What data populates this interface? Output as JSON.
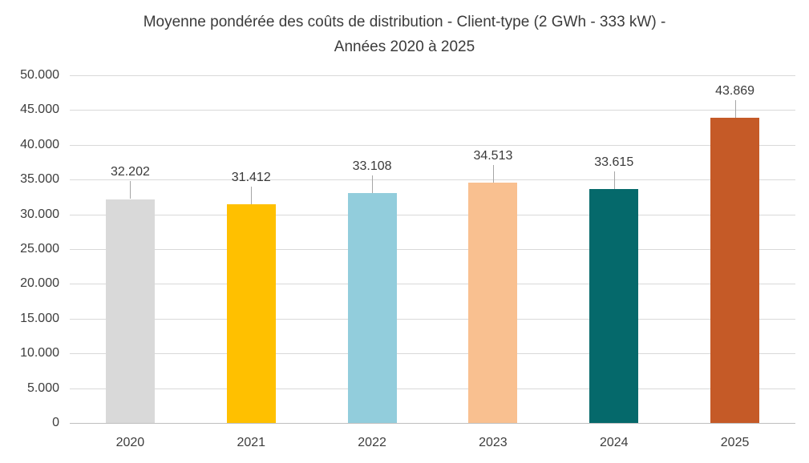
{
  "chart_data": {
    "type": "bar",
    "title_lines": [
      "Moyenne pondérée des coûts de distribution - Client-type (2 GWh - 333 kW) -",
      "Années 2020 à 2025"
    ],
    "categories": [
      "2020",
      "2021",
      "2022",
      "2023",
      "2024",
      "2025"
    ],
    "values": [
      32202,
      31412,
      33108,
      34513,
      33615,
      43869
    ],
    "value_labels": [
      "32.202",
      "31.412",
      "33.108",
      "34.513",
      "33.615",
      "43.869"
    ],
    "bar_colors": [
      "#d9d9d9",
      "#ffc000",
      "#92cddc",
      "#f9c090",
      "#05696b",
      "#c55a27"
    ],
    "ylim": [
      0,
      50000
    ],
    "ytick_step": 5000,
    "ytick_labels_bottom_to_top": [
      "0",
      "5.000",
      "10.000",
      "15.000",
      "20.000",
      "25.000",
      "30.000",
      "35.000",
      "40.000",
      "45.000",
      "50.000"
    ],
    "grid": true,
    "legend": "none",
    "xlabel": "",
    "ylabel": "",
    "colors": {
      "gridline": "#d9d9d9",
      "axis_line": "#bfbfbf",
      "text": "#3b3b3b",
      "leader_line": "#a6a6a6",
      "background": "#ffffff"
    }
  }
}
